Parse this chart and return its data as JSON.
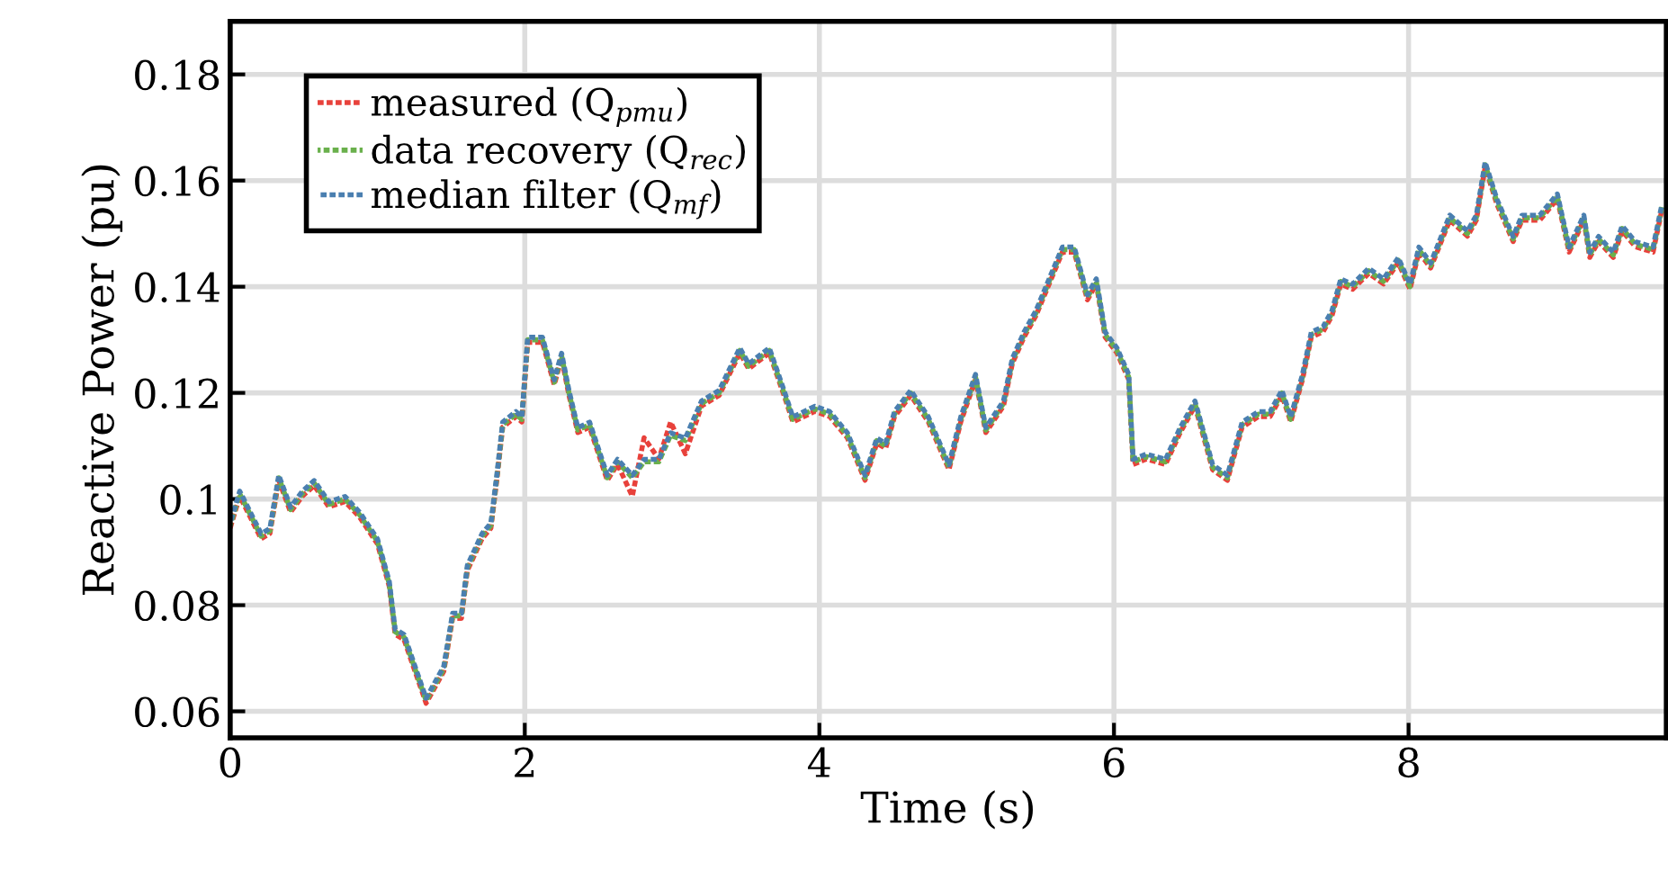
{
  "chart_data": {
    "type": "line",
    "xlabel": "Time (s)",
    "ylabel": "Reactive Power (pu)",
    "x": [
      0,
      0.065,
      0.21,
      0.27,
      0.33,
      0.41,
      0.49,
      0.57,
      0.67,
      0.78,
      0.88,
      1.0,
      1.08,
      1.12,
      1.18,
      1.33,
      1.45,
      1.51,
      1.57,
      1.61,
      1.71,
      1.77,
      1.81,
      1.85,
      1.94,
      1.98,
      2.02,
      2.12,
      2.2,
      2.25,
      2.3,
      2.36,
      2.44,
      2.56,
      2.63,
      2.73,
      2.81,
      2.91,
      2.99,
      3.09,
      3.2,
      3.32,
      3.46,
      3.52,
      3.66,
      3.76,
      3.82,
      3.97,
      4.07,
      4.19,
      4.31,
      4.39,
      4.45,
      4.51,
      4.62,
      4.74,
      4.88,
      4.96,
      5.06,
      5.13,
      5.25,
      5.31,
      5.39,
      5.47,
      5.65,
      5.73,
      5.82,
      5.88,
      5.94,
      6.02,
      6.1,
      6.13,
      6.22,
      6.35,
      6.45,
      6.55,
      6.67,
      6.77,
      6.87,
      6.98,
      7.06,
      7.14,
      7.2,
      7.28,
      7.34,
      7.42,
      7.48,
      7.54,
      7.62,
      7.73,
      7.83,
      7.93,
      8.01,
      8.07,
      8.15,
      8.28,
      8.4,
      8.46,
      8.52,
      8.6,
      8.71,
      8.77,
      8.89,
      9.01,
      9.09,
      9.19,
      9.23,
      9.29,
      9.39,
      9.45,
      9.54,
      9.66,
      9.72
    ],
    "series": [
      {
        "name": "measured (Q$_{pmu}$)",
        "color": "#e8413b",
        "values": [
          0.095,
          0.101,
          0.093,
          0.094,
          0.104,
          0.098,
          0.101,
          0.103,
          0.099,
          0.1,
          0.097,
          0.092,
          0.084,
          0.075,
          0.074,
          0.062,
          0.068,
          0.078,
          0.078,
          0.087,
          0.093,
          0.095,
          0.104,
          0.114,
          0.116,
          0.115,
          0.13,
          0.13,
          0.122,
          0.127,
          0.12,
          0.113,
          0.114,
          0.104,
          0.107,
          0.101,
          0.112,
          0.108,
          0.115,
          0.109,
          0.118,
          0.12,
          0.128,
          0.125,
          0.128,
          0.12,
          0.115,
          0.117,
          0.116,
          0.112,
          0.104,
          0.111,
          0.11,
          0.116,
          0.12,
          0.115,
          0.106,
          0.115,
          0.123,
          0.113,
          0.118,
          0.126,
          0.131,
          0.135,
          0.147,
          0.147,
          0.138,
          0.141,
          0.131,
          0.128,
          0.123,
          0.107,
          0.108,
          0.107,
          0.113,
          0.118,
          0.106,
          0.104,
          0.114,
          0.116,
          0.116,
          0.12,
          0.115,
          0.123,
          0.131,
          0.132,
          0.135,
          0.141,
          0.14,
          0.143,
          0.141,
          0.145,
          0.14,
          0.147,
          0.144,
          0.153,
          0.15,
          0.153,
          0.163,
          0.156,
          0.149,
          0.153,
          0.153,
          0.157,
          0.147,
          0.153,
          0.146,
          0.149,
          0.146,
          0.151,
          0.148,
          0.147,
          0.155
        ]
      },
      {
        "name": "data recovery (Q$_{rec}$)",
        "color": "#6ab04c",
        "values": [
          0.095,
          0.101,
          0.093,
          0.094,
          0.104,
          0.098,
          0.101,
          0.103,
          0.099,
          0.1,
          0.097,
          0.092,
          0.084,
          0.075,
          0.074,
          0.062,
          0.068,
          0.078,
          0.078,
          0.087,
          0.093,
          0.095,
          0.104,
          0.114,
          0.116,
          0.115,
          0.13,
          0.13,
          0.122,
          0.127,
          0.12,
          0.113,
          0.114,
          0.104,
          0.107,
          0.104,
          0.107,
          0.107,
          0.112,
          0.111,
          0.118,
          0.12,
          0.128,
          0.125,
          0.128,
          0.12,
          0.115,
          0.117,
          0.116,
          0.112,
          0.104,
          0.111,
          0.11,
          0.116,
          0.12,
          0.115,
          0.106,
          0.115,
          0.123,
          0.113,
          0.118,
          0.126,
          0.131,
          0.135,
          0.147,
          0.147,
          0.138,
          0.141,
          0.131,
          0.128,
          0.123,
          0.107,
          0.108,
          0.107,
          0.113,
          0.118,
          0.106,
          0.104,
          0.114,
          0.116,
          0.116,
          0.12,
          0.115,
          0.123,
          0.131,
          0.132,
          0.135,
          0.141,
          0.14,
          0.143,
          0.141,
          0.145,
          0.14,
          0.147,
          0.144,
          0.153,
          0.15,
          0.153,
          0.163,
          0.156,
          0.149,
          0.153,
          0.153,
          0.157,
          0.147,
          0.153,
          0.146,
          0.149,
          0.146,
          0.151,
          0.148,
          0.147,
          0.155
        ]
      },
      {
        "name": "median filter (Q$_{mf}$)",
        "color": "#4a7fb0",
        "values": [
          0.095,
          0.101,
          0.093,
          0.094,
          0.104,
          0.098,
          0.101,
          0.103,
          0.099,
          0.1,
          0.097,
          0.092,
          0.084,
          0.075,
          0.074,
          0.062,
          0.068,
          0.078,
          0.078,
          0.087,
          0.093,
          0.095,
          0.104,
          0.114,
          0.116,
          0.115,
          0.13,
          0.13,
          0.122,
          0.127,
          0.12,
          0.113,
          0.114,
          0.104,
          0.107,
          0.104,
          0.107,
          0.107,
          0.112,
          0.111,
          0.118,
          0.12,
          0.128,
          0.125,
          0.128,
          0.12,
          0.115,
          0.117,
          0.116,
          0.112,
          0.104,
          0.111,
          0.11,
          0.116,
          0.12,
          0.115,
          0.106,
          0.115,
          0.123,
          0.113,
          0.118,
          0.126,
          0.131,
          0.135,
          0.147,
          0.147,
          0.138,
          0.141,
          0.131,
          0.128,
          0.123,
          0.107,
          0.108,
          0.107,
          0.113,
          0.118,
          0.106,
          0.104,
          0.114,
          0.116,
          0.116,
          0.12,
          0.115,
          0.123,
          0.131,
          0.132,
          0.135,
          0.141,
          0.14,
          0.143,
          0.141,
          0.145,
          0.14,
          0.147,
          0.144,
          0.153,
          0.15,
          0.153,
          0.163,
          0.156,
          0.149,
          0.153,
          0.153,
          0.157,
          0.147,
          0.153,
          0.146,
          0.149,
          0.146,
          0.151,
          0.148,
          0.147,
          0.155
        ]
      }
    ],
    "xlim": [
      0,
      9.75
    ],
    "ylim": [
      0.055,
      0.19
    ],
    "xticks": [
      0,
      2,
      4,
      6,
      8
    ],
    "yticks": [
      0.06,
      0.08,
      0.1,
      0.12,
      0.14,
      0.16,
      0.18
    ],
    "grid": true,
    "legend": "top left",
    "line_style": "dotted",
    "marker": "none"
  }
}
